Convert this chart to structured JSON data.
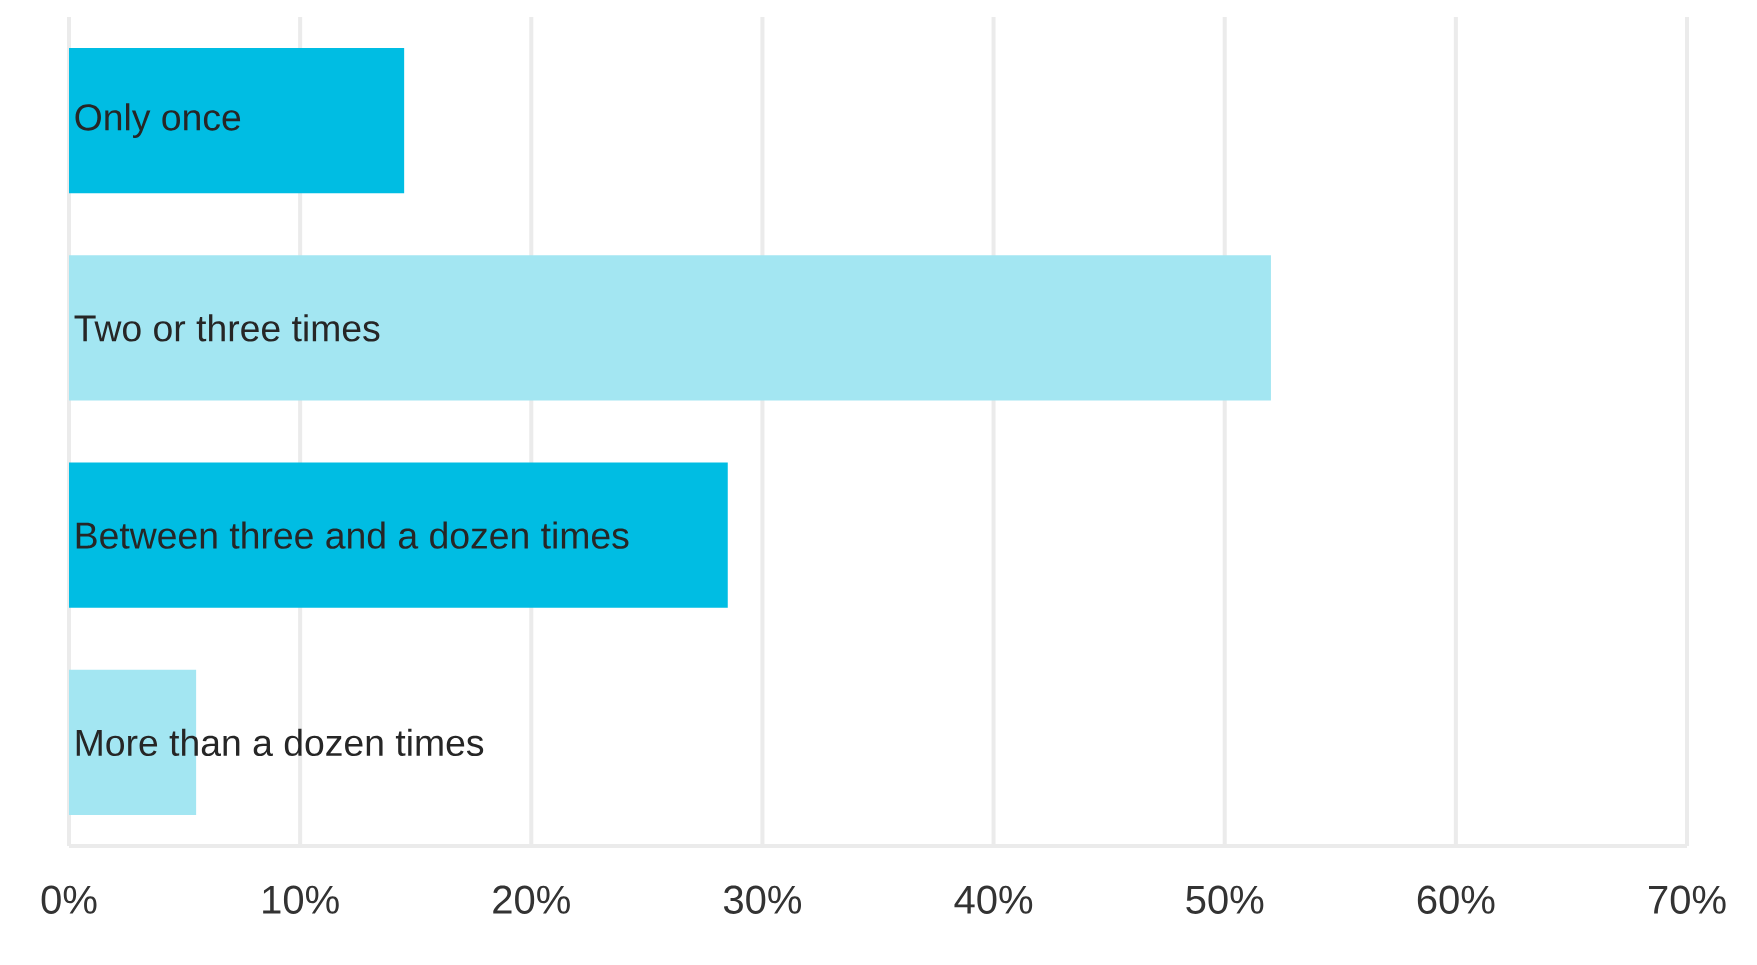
{
  "chart_data": {
    "type": "bar",
    "orientation": "horizontal",
    "categories": [
      "Only once",
      "Two or three times",
      "Between three and a dozen times",
      "More than a dozen times"
    ],
    "values": [
      14.5,
      52,
      28.5,
      5.5
    ],
    "colors": [
      "#00bde3",
      "#a3e6f2",
      "#00bde3",
      "#a3e6f2"
    ],
    "xlim": [
      0,
      70
    ],
    "xticks": [
      {
        "value": 0,
        "label": "0%"
      },
      {
        "value": 10,
        "label": "10%"
      },
      {
        "value": 20,
        "label": "20%"
      },
      {
        "value": 30,
        "label": "30%"
      },
      {
        "value": 40,
        "label": "40%"
      },
      {
        "value": 50,
        "label": "50%"
      },
      {
        "value": 60,
        "label": "60%"
      },
      {
        "value": 70,
        "label": "70%"
      }
    ],
    "grid": "x"
  }
}
